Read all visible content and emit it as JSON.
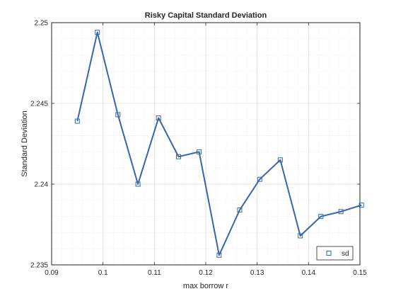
{
  "chart_data": {
    "type": "line",
    "title": "Risky Capital Standard Deviation",
    "xlabel": "max borrow r",
    "ylabel": "Standard Deviation",
    "xlim": [
      0.09,
      0.15
    ],
    "ylim": [
      2.235,
      2.25
    ],
    "xticks": [
      0.09,
      0.1,
      0.11,
      0.12,
      0.13,
      0.14,
      0.15
    ],
    "xtick_labels": [
      "0.09",
      "0.1",
      "0.11",
      "0.12",
      "0.13",
      "0.14",
      "0.15"
    ],
    "yticks": [
      2.235,
      2.24,
      2.245,
      2.25
    ],
    "ytick_labels": [
      "2.235",
      "2.24",
      "2.245",
      "2.25"
    ],
    "grid": true,
    "minor_grid": true,
    "legend_position": "bottom-right",
    "series": [
      {
        "name": "sd",
        "color": "#3a65a8",
        "marker": "square",
        "x": [
          0.095,
          0.0989,
          0.1029,
          0.1068,
          0.1108,
          0.1147,
          0.1187,
          0.1226,
          0.1266,
          0.1305,
          0.1345,
          0.1384,
          0.1424,
          0.1463,
          0.1503
        ],
        "y": [
          2.2439,
          2.2494,
          2.2443,
          2.24,
          2.2441,
          2.2417,
          2.242,
          2.2356,
          2.2384,
          2.2403,
          2.2415,
          2.2368,
          2.238,
          2.2383,
          2.2387
        ]
      }
    ]
  }
}
